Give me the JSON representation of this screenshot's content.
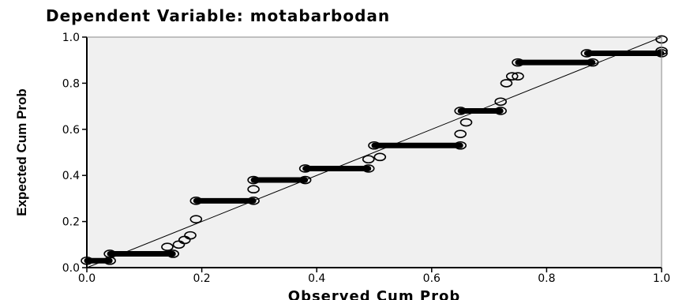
{
  "chart_data": {
    "type": "scatter",
    "title": "Dependent Variable: motabarbodan",
    "xlabel": "Observed Cum Prob",
    "ylabel": "Expected Cum Prob",
    "xlim": [
      0,
      1
    ],
    "ylim": [
      0,
      1
    ],
    "x_ticks": [
      "0.0",
      "0.2",
      "0.4",
      "0.6",
      "0.8",
      "1.0"
    ],
    "y_ticks": [
      "0.0",
      "0.2",
      "0.4",
      "0.6",
      "0.8",
      "1.0"
    ],
    "grid": false,
    "reference_line": {
      "from": [
        0,
        0
      ],
      "to": [
        1,
        1
      ]
    },
    "marker": "open-circle",
    "background_color": "#f0f0f0",
    "marker_color": "#000000",
    "points": [
      [
        0.0,
        0.03
      ],
      [
        0.04,
        0.03
      ],
      [
        0.04,
        0.06
      ],
      [
        0.15,
        0.06
      ],
      [
        0.14,
        0.09
      ],
      [
        0.16,
        0.1
      ],
      [
        0.17,
        0.12
      ],
      [
        0.18,
        0.14
      ],
      [
        0.19,
        0.21
      ],
      [
        0.19,
        0.29
      ],
      [
        0.29,
        0.29
      ],
      [
        0.29,
        0.34
      ],
      [
        0.29,
        0.38
      ],
      [
        0.38,
        0.38
      ],
      [
        0.38,
        0.43
      ],
      [
        0.49,
        0.43
      ],
      [
        0.49,
        0.47
      ],
      [
        0.51,
        0.48
      ],
      [
        0.5,
        0.53
      ],
      [
        0.65,
        0.53
      ],
      [
        0.65,
        0.58
      ],
      [
        0.66,
        0.63
      ],
      [
        0.65,
        0.68
      ],
      [
        0.72,
        0.68
      ],
      [
        0.72,
        0.72
      ],
      [
        0.73,
        0.8
      ],
      [
        0.74,
        0.83
      ],
      [
        0.75,
        0.83
      ],
      [
        0.75,
        0.89
      ],
      [
        0.88,
        0.89
      ],
      [
        0.87,
        0.93
      ],
      [
        1.0,
        0.93
      ],
      [
        1.0,
        0.94
      ],
      [
        1.0,
        0.99
      ]
    ],
    "segments": [
      [
        0.0,
        0.04,
        0.03
      ],
      [
        0.04,
        0.15,
        0.06
      ],
      [
        0.19,
        0.29,
        0.29
      ],
      [
        0.29,
        0.38,
        0.38
      ],
      [
        0.38,
        0.49,
        0.43
      ],
      [
        0.5,
        0.65,
        0.53
      ],
      [
        0.65,
        0.72,
        0.68
      ],
      [
        0.75,
        0.88,
        0.89
      ],
      [
        0.87,
        1.0,
        0.93
      ]
    ]
  }
}
